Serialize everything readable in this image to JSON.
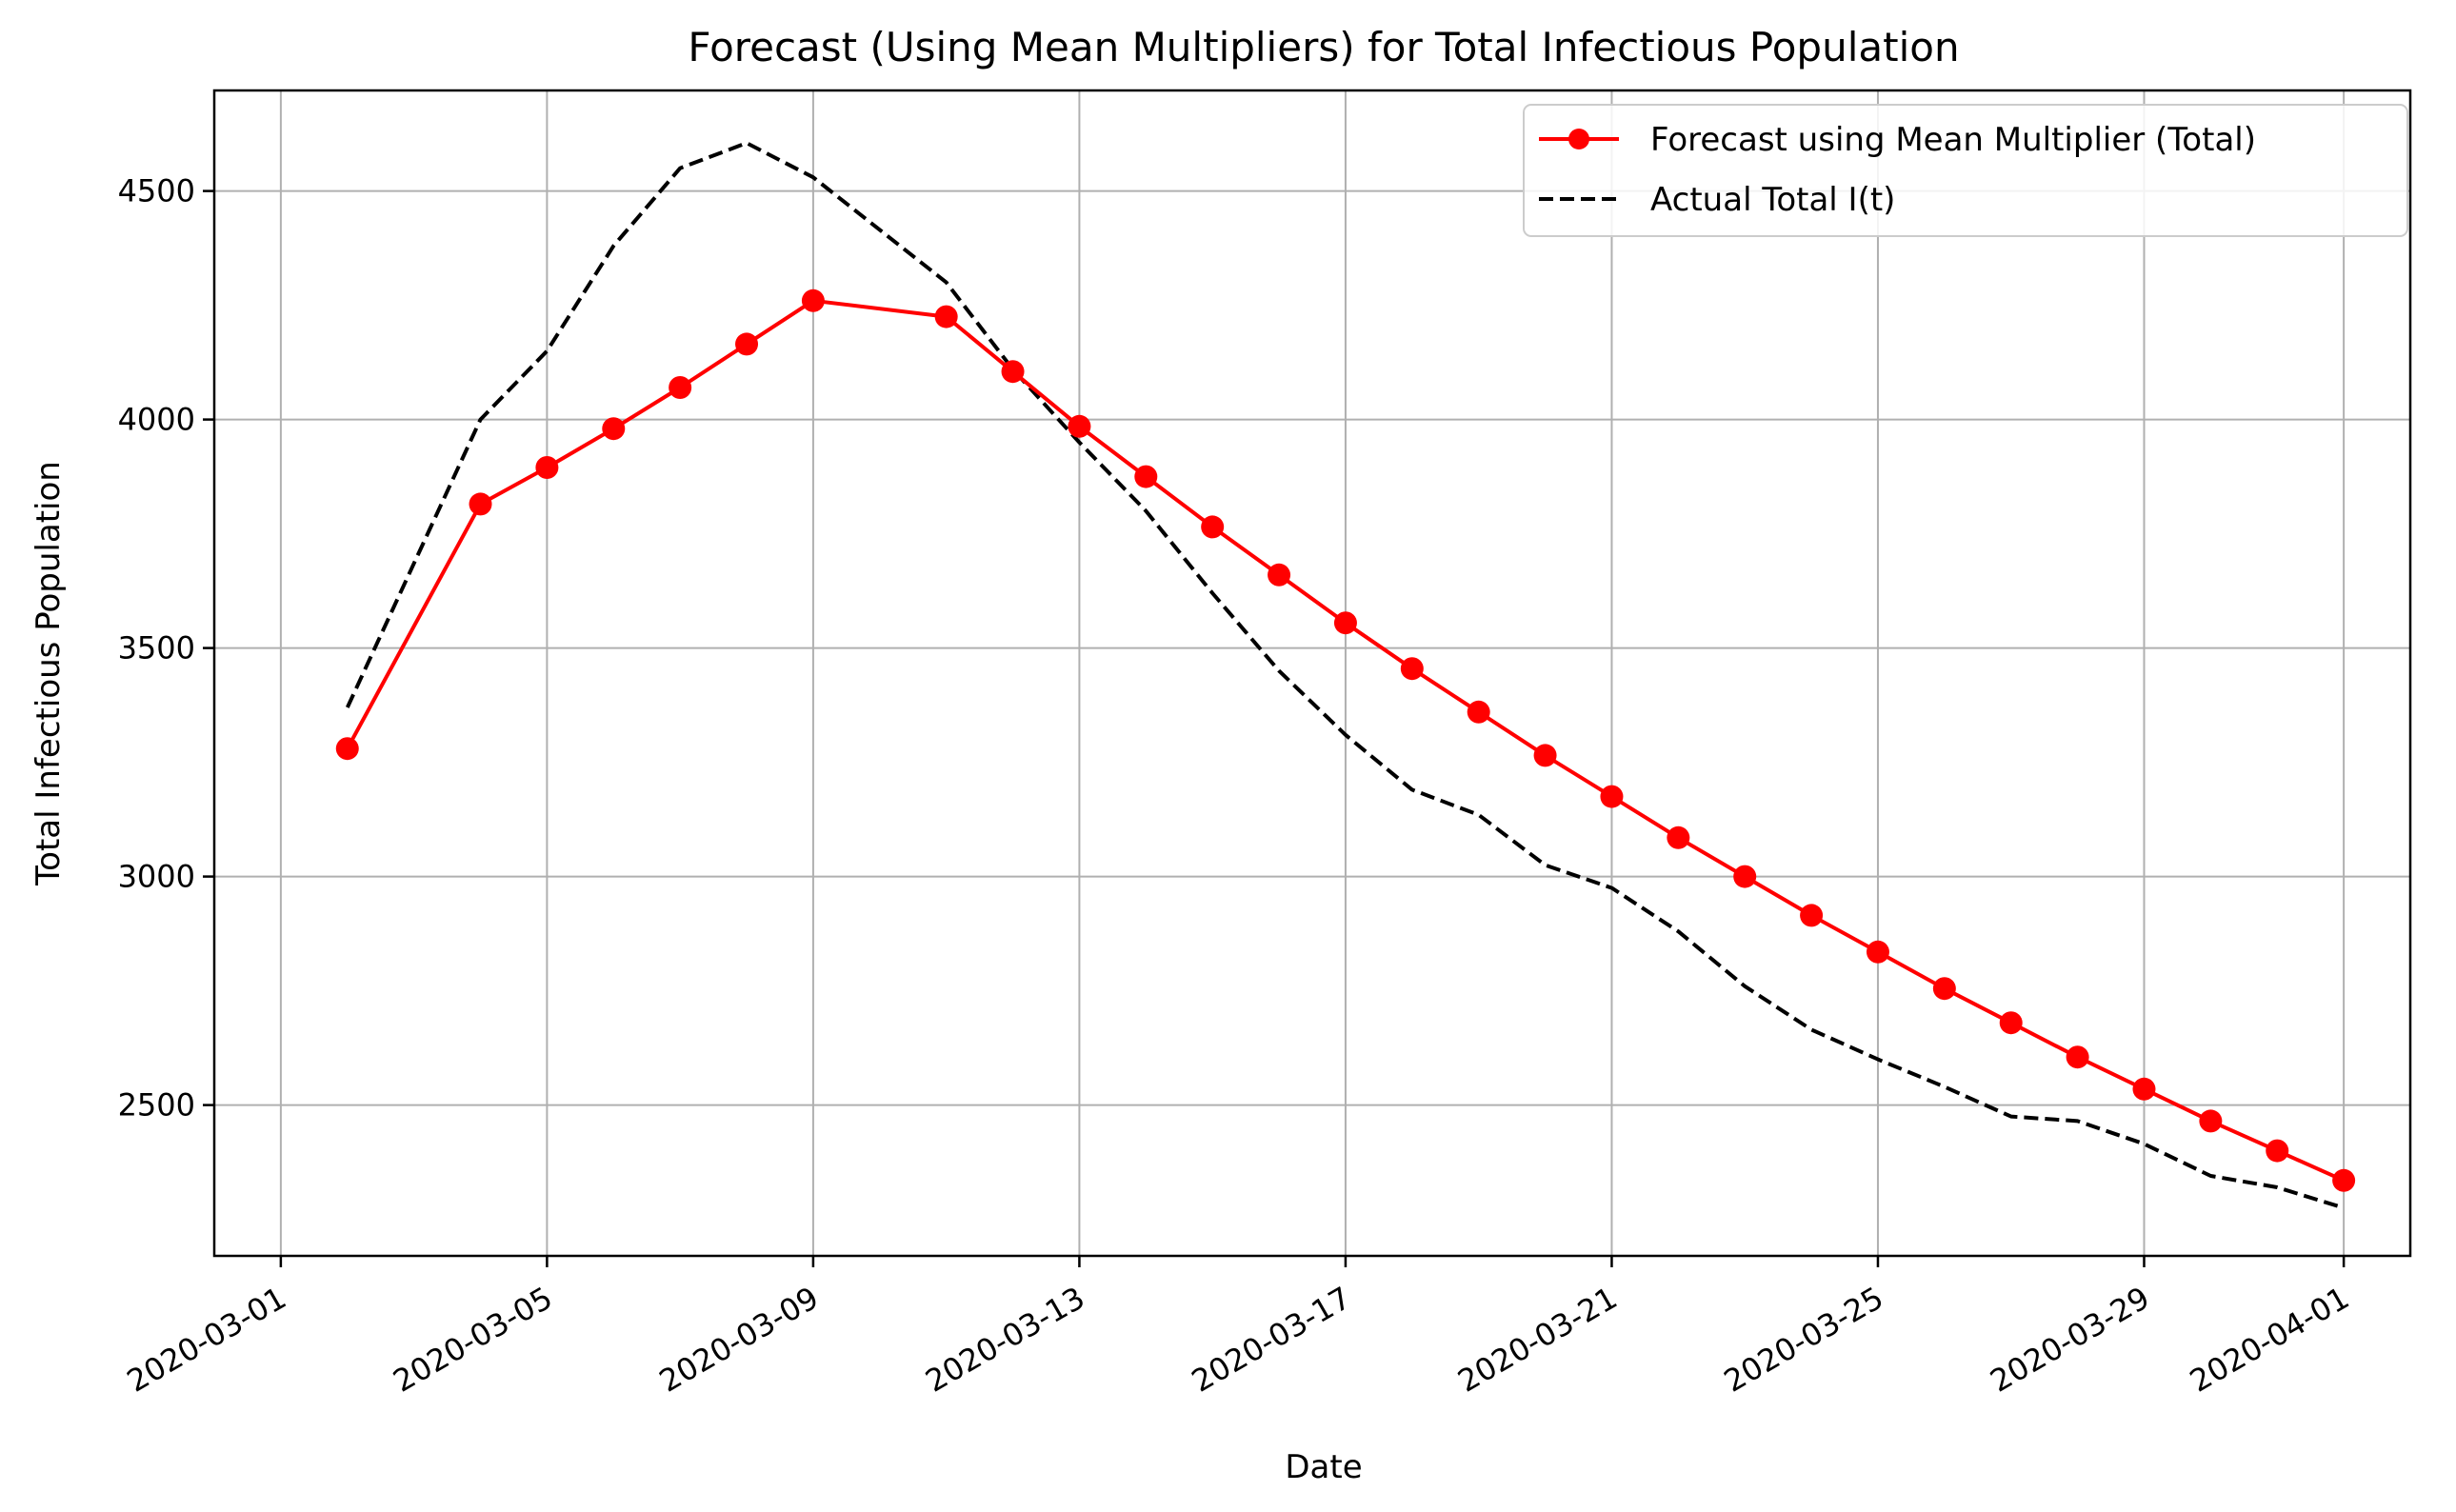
{
  "chart_data": {
    "type": "line",
    "title": "Forecast (Using Mean Multipliers) for Total Infectious Population",
    "xlabel": "Date",
    "ylabel": "Total Infectious Population",
    "xlim": [
      "2020-02-29",
      "2020-04-02"
    ],
    "ylim": [
      2170,
      4720
    ],
    "x_ticks": [
      "2020-03-01",
      "2020-03-05",
      "2020-03-09",
      "2020-03-13",
      "2020-03-17",
      "2020-03-21",
      "2020-03-25",
      "2020-03-29",
      "2020-04-01"
    ],
    "y_ticks": [
      2500,
      3000,
      3500,
      4000,
      4500
    ],
    "grid": true,
    "legend_position": "upper-right",
    "series": [
      {
        "name": "Forecast using Mean Multiplier (Total)",
        "color": "#ff0000",
        "style": "solid",
        "marker": "circle",
        "x": [
          "2020-03-02",
          "2020-03-04",
          "2020-03-05",
          "2020-03-06",
          "2020-03-07",
          "2020-03-08",
          "2020-03-09",
          "2020-03-11",
          "2020-03-12",
          "2020-03-13",
          "2020-03-14",
          "2020-03-15",
          "2020-03-16",
          "2020-03-17",
          "2020-03-18",
          "2020-03-19",
          "2020-03-20",
          "2020-03-21",
          "2020-03-22",
          "2020-03-23",
          "2020-03-24",
          "2020-03-25",
          "2020-03-26",
          "2020-03-27",
          "2020-03-28",
          "2020-03-29",
          "2020-03-30",
          "2020-03-31",
          "2020-04-01"
        ],
        "values": [
          3280,
          3815,
          3895,
          3980,
          4070,
          4165,
          4260,
          4225,
          4105,
          3985,
          3875,
          3765,
          3660,
          3555,
          3455,
          3360,
          3265,
          3175,
          3085,
          3000,
          2915,
          2835,
          2755,
          2680,
          2605,
          2535,
          2465,
          2400,
          2335
        ]
      },
      {
        "name": "Actual Total I(t)",
        "color": "#000000",
        "style": "dashed",
        "marker": "none",
        "x": [
          "2020-03-02",
          "2020-03-04",
          "2020-03-05",
          "2020-03-06",
          "2020-03-07",
          "2020-03-08",
          "2020-03-09",
          "2020-03-11",
          "2020-03-12",
          "2020-03-13",
          "2020-03-14",
          "2020-03-15",
          "2020-03-16",
          "2020-03-17",
          "2020-03-18",
          "2020-03-19",
          "2020-03-20",
          "2020-03-21",
          "2020-03-22",
          "2020-03-23",
          "2020-03-24",
          "2020-03-25",
          "2020-03-26",
          "2020-03-27",
          "2020-03-28",
          "2020-03-29",
          "2020-03-30",
          "2020-03-31",
          "2020-04-01"
        ],
        "values": [
          3370,
          4000,
          4150,
          4380,
          4550,
          4605,
          4530,
          4300,
          4110,
          3950,
          3800,
          3620,
          3450,
          3310,
          3190,
          3135,
          3025,
          2975,
          2880,
          2760,
          2665,
          2600,
          2540,
          2475,
          2465,
          2415,
          2345,
          2320,
          2275
        ]
      }
    ]
  }
}
